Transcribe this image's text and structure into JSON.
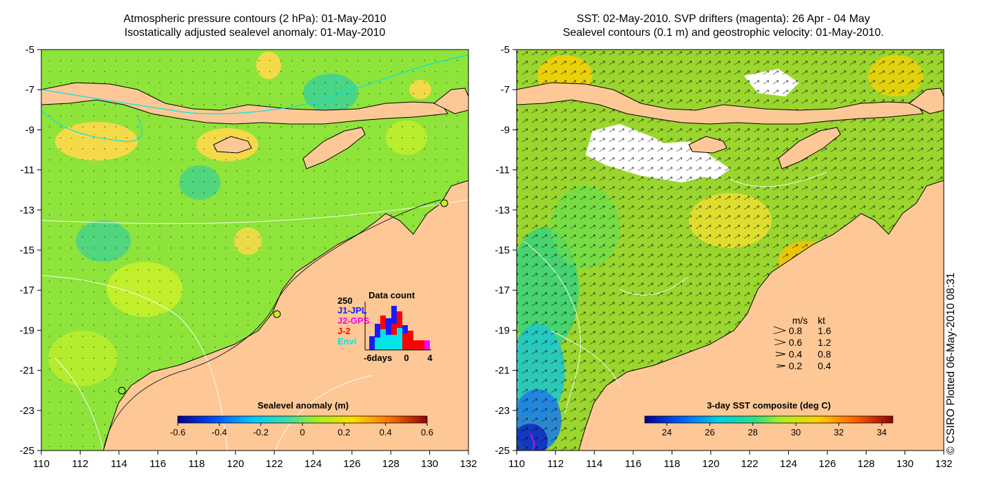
{
  "left_panel": {
    "title_line1": "Atmospheric pressure contours (2 hPa): 01-May-2010",
    "title_line2": "Isostatically adjusted sealevel anomaly: 01-May-2010",
    "colorbar": {
      "title": "Sealevel anomaly (m)",
      "ticks": [
        "-0.6",
        "-0.4",
        "-0.2",
        "0",
        "0.2",
        "0.4",
        "0.6"
      ]
    },
    "data_count": {
      "title": "Data count",
      "ymax_label": "250",
      "x_labels": [
        "-6days",
        "0",
        "4"
      ],
      "legend": [
        {
          "name": "J1-JPL",
          "color": "#1a1aff"
        },
        {
          "name": "J2-GPS",
          "color": "#ff00ff"
        },
        {
          "name": "J-2",
          "color": "#ff0000"
        },
        {
          "name": "Envi",
          "color": "#00e5e5"
        }
      ]
    }
  },
  "right_panel": {
    "title_line1": "SST: 02-May-2010. SVP drifters (magenta): 26 Apr - 04 May",
    "title_line2": "Sealevel contours (0.1 m) and geostrophic velocity: 01-May-2010.",
    "colorbar": {
      "title": "3-day SST composite (deg C)",
      "ticks": [
        "24",
        "26",
        "28",
        "30",
        "32",
        "34"
      ]
    },
    "velocity_legend": {
      "header_ms": "m/s",
      "header_kt": "kt",
      "rows": [
        {
          "ms": "0.8",
          "kt": "1.6"
        },
        {
          "ms": "0.6",
          "kt": "1.2"
        },
        {
          "ms": "0.4",
          "kt": "0.8"
        },
        {
          "ms": "0.2",
          "kt": "0.4"
        }
      ]
    }
  },
  "axes": {
    "x_ticks": [
      "110",
      "112",
      "114",
      "116",
      "118",
      "120",
      "122",
      "124",
      "126",
      "128",
      "130",
      "132"
    ],
    "y_ticks": [
      "-5",
      "-7",
      "-9",
      "-11",
      "-13",
      "-15",
      "-17",
      "-19",
      "-21",
      "-23",
      "-25"
    ],
    "lon_range": [
      110,
      132
    ],
    "lat_range": [
      -25,
      -5
    ]
  },
  "credit": "© CSIRO Plotted 06-May-2010 08:31",
  "colors": {
    "land": "#fdc896",
    "sea_left": "#8ee43a",
    "sea_right": "#9ad62e"
  }
}
